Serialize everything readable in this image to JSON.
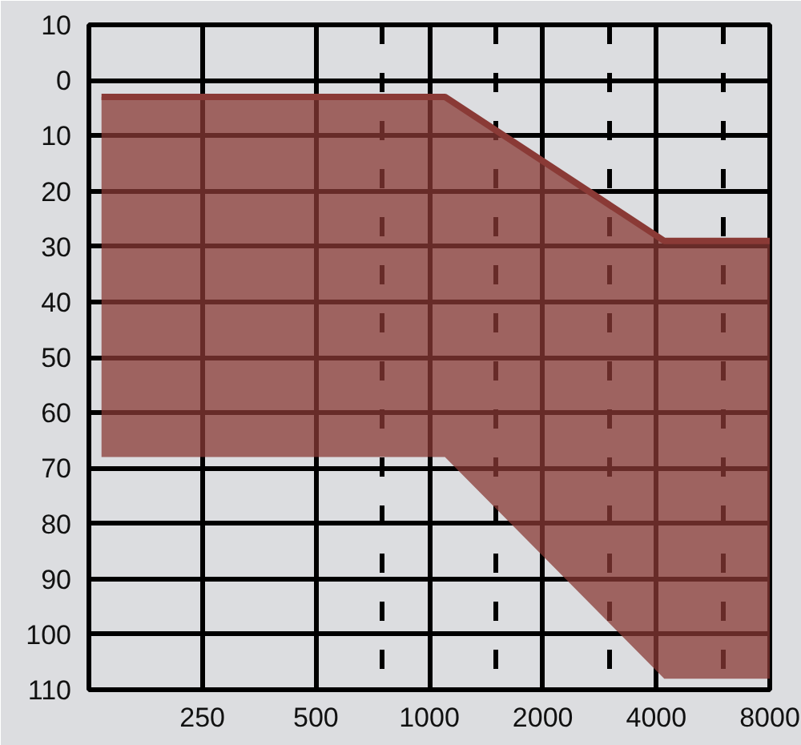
{
  "chart_data": {
    "type": "line",
    "series": [
      {
        "x": [
          135,
          1100,
          4200,
          8000
        ],
        "values": [
          3,
          3,
          29,
          29
        ],
        "lower": [
          3,
          3,
          29,
          29
        ],
        "upper": [
          68,
          68,
          108,
          108
        ],
        "color": "#8a3a36"
      }
    ],
    "xlim": [
      125,
      8000
    ],
    "ylim": [
      110,
      -10
    ],
    "log": "x",
    "xticks": [
      250,
      500,
      {
        "value": 750,
        "label": null
      },
      1000,
      {
        "value": 1500,
        "label": null
      },
      2000,
      {
        "value": 3000,
        "label": null
      },
      4000,
      {
        "value": 6000,
        "label": null
      },
      8000
    ],
    "yticks": [
      {
        "value": -10,
        "label": "10"
      },
      0,
      10,
      20,
      30,
      40,
      50,
      60,
      70,
      80,
      90,
      100,
      110
    ],
    "grid": true
  }
}
